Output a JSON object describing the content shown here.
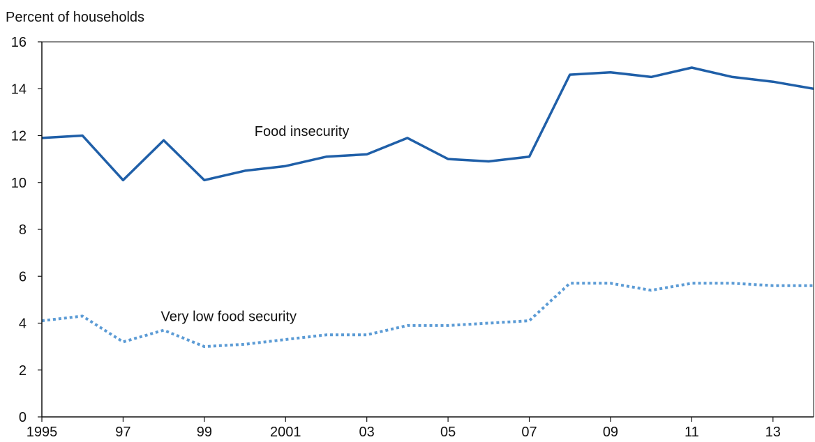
{
  "chart_data": {
    "type": "line",
    "title": "",
    "ylabel": "Percent of households",
    "xlabel": "",
    "ylim": [
      0,
      16
    ],
    "yticks": [
      "0",
      "2",
      "4",
      "6",
      "8",
      "10",
      "12",
      "14",
      "16"
    ],
    "xlim": [
      1995,
      2014
    ],
    "xticks": [
      {
        "x": 1995,
        "label": "1995"
      },
      {
        "x": 1997,
        "label": "97"
      },
      {
        "x": 1999,
        "label": "99"
      },
      {
        "x": 2001,
        "label": "2001"
      },
      {
        "x": 2003,
        "label": "03"
      },
      {
        "x": 2005,
        "label": "05"
      },
      {
        "x": 2007,
        "label": "07"
      },
      {
        "x": 2009,
        "label": "09"
      },
      {
        "x": 2011,
        "label": "11"
      },
      {
        "x": 2013,
        "label": "13"
      }
    ],
    "grid": false,
    "x": [
      1995,
      1996,
      1997,
      1998,
      1999,
      2000,
      2001,
      2002,
      2003,
      2004,
      2005,
      2006,
      2007,
      2008,
      2009,
      2010,
      2011,
      2012,
      2013,
      2014
    ],
    "series": [
      {
        "name": "Food insecurity",
        "color": "#1f5fa8",
        "style": "solid",
        "values": [
          11.9,
          12.0,
          10.1,
          11.8,
          10.1,
          10.5,
          10.7,
          11.1,
          11.2,
          11.9,
          11.0,
          10.9,
          11.1,
          14.6,
          14.7,
          14.5,
          14.9,
          14.5,
          14.3,
          14.0
        ],
        "label_pos": {
          "x": 2001.4,
          "y": 12.2
        }
      },
      {
        "name": "Very low food security",
        "color": "#5b9bd5",
        "style": "dotted",
        "values": [
          4.1,
          4.3,
          3.2,
          3.7,
          3.0,
          3.1,
          3.3,
          3.5,
          3.5,
          3.9,
          3.9,
          4.0,
          4.1,
          5.7,
          5.7,
          5.4,
          5.7,
          5.7,
          5.6,
          5.6
        ],
        "label_pos": {
          "x": 1999.6,
          "y": 4.3
        }
      }
    ]
  }
}
